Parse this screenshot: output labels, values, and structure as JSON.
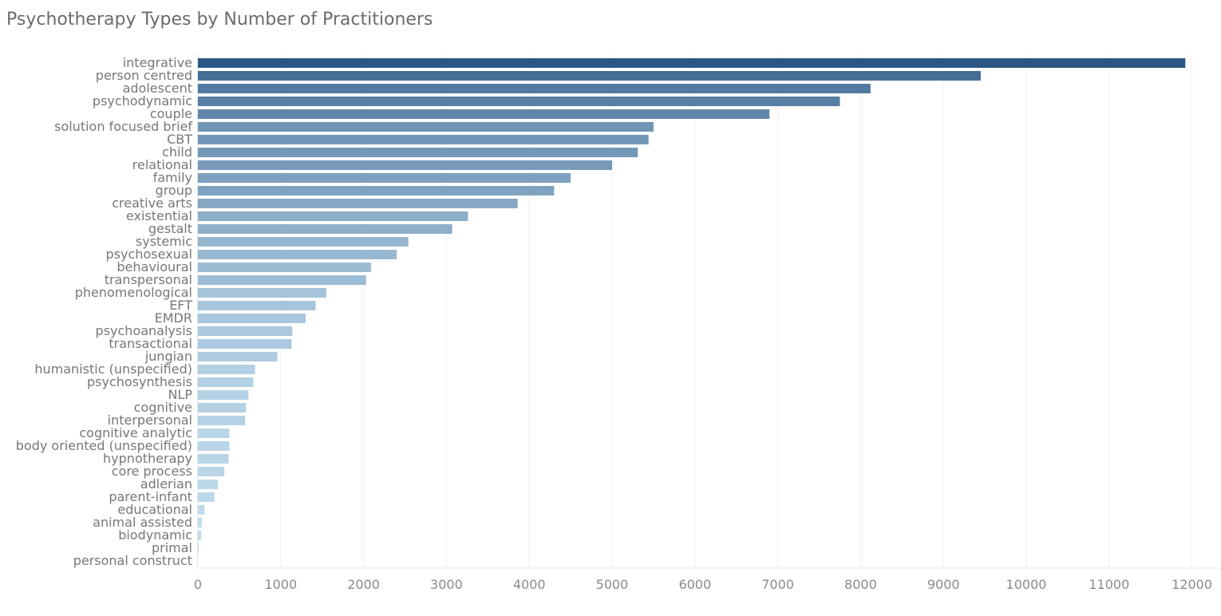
{
  "chart_data": {
    "type": "bar",
    "orientation": "horizontal",
    "title": "Psychotherapy Types by Number of Practitioners",
    "xlabel": "",
    "ylabel": "",
    "xlim": [
      0,
      12000
    ],
    "x_ticks": [
      0,
      1000,
      2000,
      3000,
      4000,
      5000,
      6000,
      7000,
      8000,
      9000,
      10000,
      11000,
      12000
    ],
    "x_tick_labels": [
      "0",
      "1000",
      "2000",
      "3000",
      "4000",
      "5000",
      "6000",
      "7000",
      "8000",
      "9000",
      "10000",
      "11000",
      "12000"
    ],
    "grid": "vertical",
    "legend": "none",
    "color_scale": [
      "#c2ddef",
      "#2b5784"
    ],
    "categories": [
      "integrative",
      "person centred",
      "adolescent",
      "psychodynamic",
      "couple",
      "solution focused brief",
      "CBT",
      "child",
      "relational",
      "family",
      "group",
      "creative arts",
      "existential",
      "gestalt",
      "systemic",
      "psychosexual",
      "behavioural",
      "transpersonal",
      "phenomenological",
      "EFT",
      "EMDR",
      "psychoanalysis",
      "transactional",
      "jungian",
      "humanistic (unspecified)",
      "psychosynthesis",
      "NLP",
      "cognitive",
      "interpersonal",
      "cognitive analytic",
      "body oriented (unspecified)",
      "hypnotherapy",
      "core process",
      "adlerian",
      "parent-infant",
      "educational",
      "animal assisted",
      "biodynamic",
      "primal",
      "personal construct"
    ],
    "values": [
      11920,
      9450,
      8120,
      7750,
      6900,
      5500,
      5440,
      5310,
      5000,
      4500,
      4300,
      3860,
      3260,
      3070,
      2540,
      2400,
      2090,
      2030,
      1550,
      1420,
      1300,
      1140,
      1130,
      960,
      690,
      670,
      610,
      580,
      570,
      380,
      380,
      370,
      320,
      240,
      200,
      80,
      50,
      40,
      10,
      0
    ]
  }
}
